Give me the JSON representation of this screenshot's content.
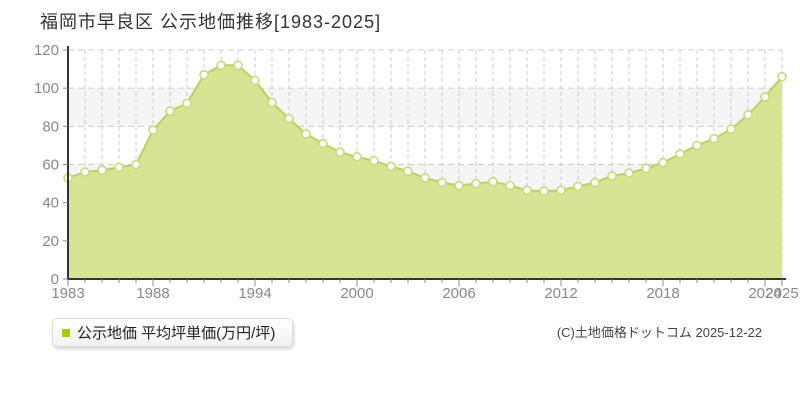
{
  "header": {
    "title": "福岡市早良区 公示地価推移[1983-2025]"
  },
  "legend": {
    "label": "公示地価 平均坪単価(万円/坪)",
    "marker_color": "#a3cb0f"
  },
  "footer": {
    "copyright": "(C)土地価格ドットコム 2025-12-22"
  },
  "chart_data": {
    "type": "area",
    "title": "福岡市早良区 公示地価推移[1983-2025]",
    "ylabel": "平均坪単価(万円/坪)",
    "xlabel": "",
    "unit": "万円/坪",
    "ylim": [
      0,
      120
    ],
    "y_tick_step": 20,
    "grid": true,
    "legend_position": "bottom-left",
    "x": [
      1983,
      1984,
      1985,
      1986,
      1987,
      1988,
      1989,
      1990,
      1991,
      1992,
      1993,
      1994,
      1995,
      1996,
      1997,
      1998,
      1999,
      2000,
      2001,
      2002,
      2003,
      2004,
      2005,
      2006,
      2007,
      2008,
      2009,
      2010,
      2011,
      2012,
      2013,
      2014,
      2015,
      2016,
      2017,
      2018,
      2019,
      2020,
      2021,
      2022,
      2023,
      2024,
      2025
    ],
    "values": [
      53,
      56,
      57,
      58.5,
      60,
      78,
      88,
      92,
      107,
      112,
      112,
      104,
      92.5,
      84,
      76,
      71,
      66.5,
      64,
      62,
      59,
      56.5,
      53,
      50.5,
      49,
      50,
      51,
      49,
      46.5,
      46,
      46.5,
      48.5,
      50.5,
      54,
      55.5,
      58,
      61,
      65.5,
      70,
      73.5,
      78.5,
      86,
      95.5,
      106
    ],
    "x_tick_labels": [
      1983,
      1988,
      1994,
      2000,
      2006,
      2012,
      2018,
      2024,
      2025
    ],
    "colors": {
      "area_fill": "#d6e494",
      "line": "#b9d15e",
      "marker_fill": "#ffffff",
      "marker_stroke": "#c6db7c",
      "band": "#f5f5f5",
      "grid": "#cccccc",
      "axis": "#333333",
      "tick_label": "#888888"
    }
  }
}
